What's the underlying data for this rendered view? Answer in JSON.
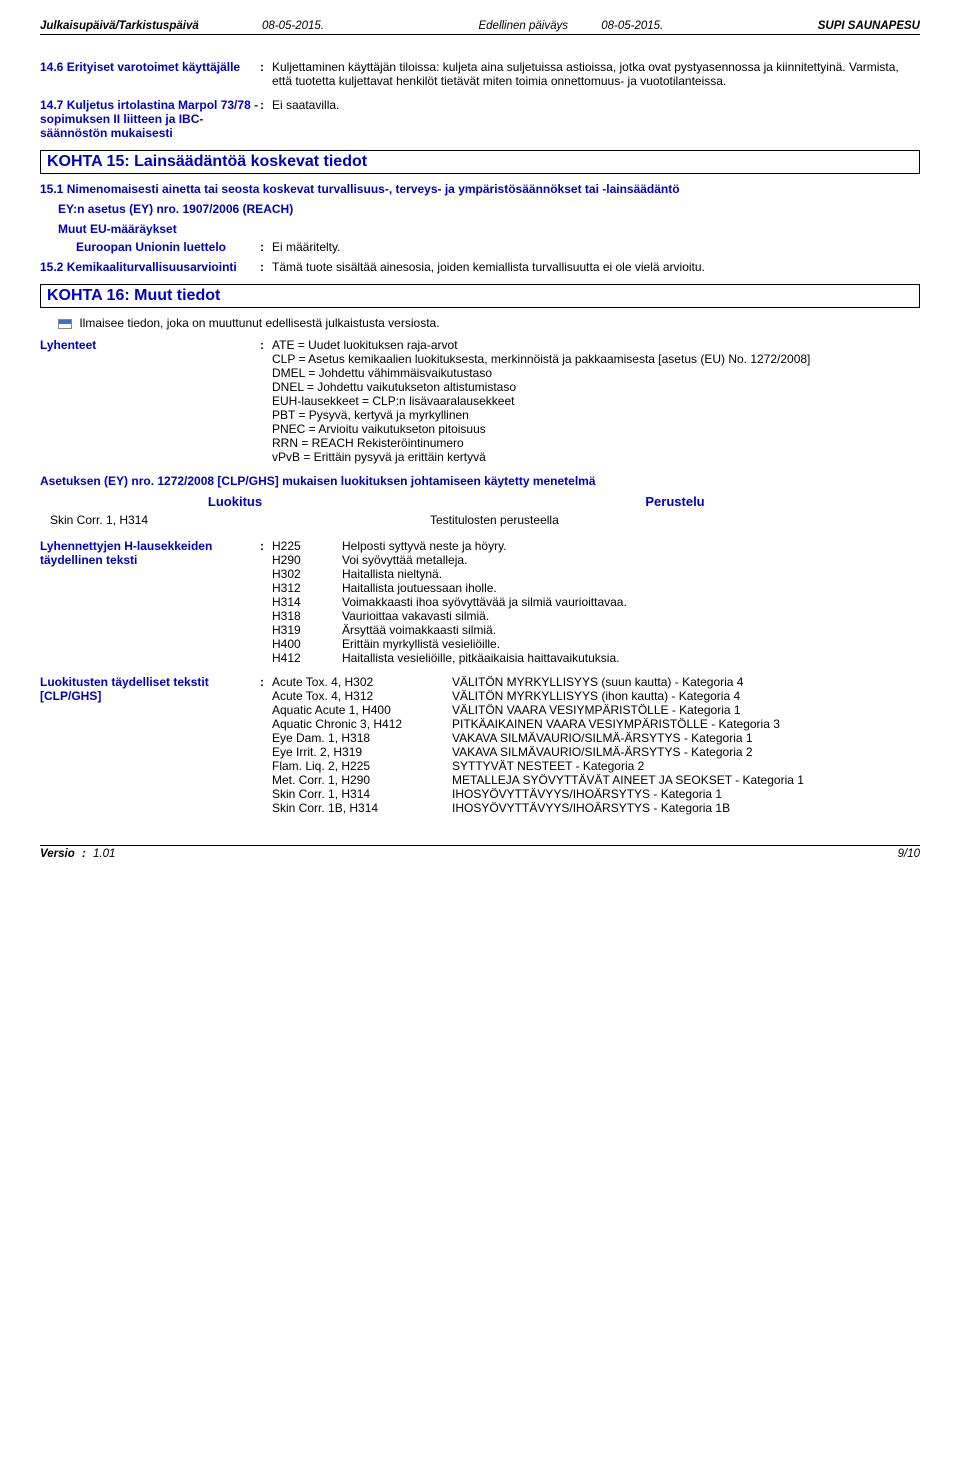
{
  "header": {
    "left_label": "Julkaisupäivä/Tarkistuspäivä",
    "left_date": "08-05-2015.",
    "mid_label": "Edellinen päiväys",
    "mid_date": "08-05-2015.",
    "product": "SUPI SAUNAPESU"
  },
  "s14_6": {
    "label": "14.6 Erityiset varotoimet käyttäjälle",
    "text": "Kuljettaminen käyttäjän tiloissa: kuljeta aina suljetuissa astioissa, jotka ovat pystyasennossa ja kiinnitettyinä. Varmista, että tuotetta kuljettavat henkilöt tietävät miten toimia onnettomuus- ja vuototilanteissa."
  },
  "s14_7": {
    "label": "14.7 Kuljetus irtolastina Marpol 73/78 -sopimuksen II liitteen ja IBC-säännöstön mukaisesti",
    "text": "Ei saatavilla."
  },
  "section15_title": "KOHTA 15: Lainsäädäntöä koskevat tiedot",
  "s15_1": {
    "heading": "15.1 Nimenomaisesti ainetta tai seosta koskevat turvallisuus-, terveys- ja ympäristösäännökset tai -lainsäädäntö",
    "ey_label": "EY:n asetus (EY) nro. 1907/2006 (REACH)",
    "muut_label": "Muut EU-määräykset",
    "eu_list_label": "Euroopan Unionin luettelo",
    "eu_list_value": "Ei määritelty."
  },
  "s15_2": {
    "label": "15.2 Kemikaaliturvallisuusarviointi",
    "text": "Tämä tuote sisältää ainesosia, joiden kemiallista turvallisuutta ei ole vielä arvioitu."
  },
  "section16_title": "KOHTA 16: Muut tiedot",
  "s16": {
    "flag_text": "Ilmaisee tiedon, joka on muuttunut edellisestä julkaistusta versiosta.",
    "lyh_label": "Lyhenteet",
    "lyh_text": "ATE = Uudet luokituksen raja-arvot\nCLP = Asetus kemikaalien luokituksesta, merkinnöistä ja pakkaamisesta [asetus (EU) No. 1272/2008]\nDMEL = Johdettu vähimmäisvaikutustaso\nDNEL = Johdettu vaikutukseton altistumistaso\nEUH-lausekkeet = CLP:n lisävaaralausekkeet\nPBT = Pysyvä, kertyvä ja myrkyllinen\nPNEC = Arvioitu vaikutukseton pitoisuus\nRRN = REACH Rekisteröintinumero\nvPvB = Erittäin pysyvä ja erittäin kertyvä",
    "method_heading": "Asetuksen (EY) nro. 1272/2008 [CLP/GHS] mukaisen luokituksen johtamiseen käytetty menetelmä",
    "class_head_left": "Luokitus",
    "class_head_right": "Perustelu",
    "class_left": "Skin Corr. 1, H314",
    "class_right": "Testitulosten perusteella",
    "hfull_label": "Lyhennettyjen H-lausekkeiden täydellinen teksti",
    "hcodes": [
      {
        "c": "H225",
        "t": "Helposti syttyvä neste ja höyry."
      },
      {
        "c": "H290",
        "t": "Voi syövyttää metalleja."
      },
      {
        "c": "H302",
        "t": "Haitallista nieltynä."
      },
      {
        "c": "H312",
        "t": "Haitallista joutuessaan iholle."
      },
      {
        "c": "H314",
        "t": "Voimakkaasti ihoa syövyttävää ja silmiä vaurioittavaa."
      },
      {
        "c": "H318",
        "t": "Vaurioittaa vakavasti silmiä."
      },
      {
        "c": "H319",
        "t": "Ärsyttää voimakkaasti silmiä."
      },
      {
        "c": "H400",
        "t": "Erittäin myrkyllistä vesieliöille."
      },
      {
        "c": "H412",
        "t": "Haitallista vesieliöille, pitkäaikaisia haittavaikutuksia."
      }
    ],
    "clp_label": "Luokitusten täydelliset tekstit [CLP/GHS]",
    "clp": [
      {
        "l": "Acute Tox. 4, H302",
        "r": "VÄLITÖN MYRKYLLISYYS (suun kautta) - Kategoria 4"
      },
      {
        "l": "Acute Tox. 4, H312",
        "r": "VÄLITÖN MYRKYLLISYYS (ihon kautta) - Kategoria 4"
      },
      {
        "l": "Aquatic Acute 1, H400",
        "r": "VÄLITÖN VAARA VESIYMPÄRISTÖLLE - Kategoria 1"
      },
      {
        "l": "Aquatic Chronic 3, H412",
        "r": "PITKÄAIKAINEN VAARA VESIYMPÄRISTÖLLE - Kategoria 3"
      },
      {
        "l": "Eye Dam. 1, H318",
        "r": "VAKAVA SILMÄVAURIO/SILMÄ-ÄRSYTYS - Kategoria 1"
      },
      {
        "l": "Eye Irrit. 2, H319",
        "r": "VAKAVA SILMÄVAURIO/SILMÄ-ÄRSYTYS - Kategoria 2"
      },
      {
        "l": "Flam. Liq. 2, H225",
        "r": "SYTTYVÄT NESTEET - Kategoria 2"
      },
      {
        "l": "Met. Corr. 1, H290",
        "r": "METALLEJA SYÖVYTTÄVÄT AINEET JA SEOKSET - Kategoria 1"
      },
      {
        "l": "Skin Corr. 1, H314",
        "r": "IHOSYÖVYTTÄVYYS/IHOÄRSYTYS - Kategoria 1"
      },
      {
        "l": "Skin Corr. 1B, H314",
        "r": "IHOSYÖVYTTÄVYYS/IHOÄRSYTYS - Kategoria 1B"
      }
    ]
  },
  "footer": {
    "versio_label": "Versio",
    "versio_value": "1.01",
    "page": "9/10"
  }
}
